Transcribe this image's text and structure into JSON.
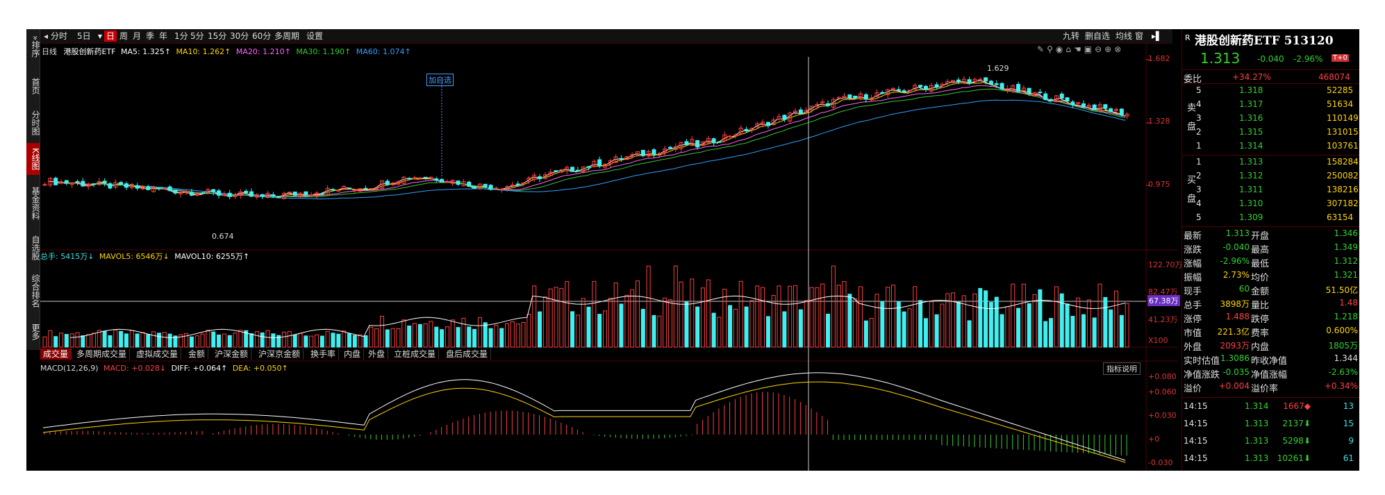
{
  "leftnav": {
    "expand": "»",
    "items": [
      "排序",
      "首页",
      "分时图",
      "K线图",
      "基金资料",
      "自选股",
      "综合排名",
      "更多"
    ]
  },
  "toolbar": {
    "periods": [
      "分时",
      "5日",
      "日",
      "周",
      "月",
      "季",
      "年",
      "1分",
      "5分",
      "15分",
      "30分",
      "60分",
      "多周期",
      "设置"
    ],
    "right_items": [
      "九转",
      "删自选",
      "均线",
      "窗"
    ]
  },
  "kline": {
    "period_label": "日线",
    "name": "港股创新药ETF",
    "ma5": "MA5: 1.325↑",
    "ma10": "MA10: 1.262↑",
    "ma20": "MA20: 1.210↑",
    "ma30": "MA30: 1.190↑",
    "ma60": "MA60: 1.074↑",
    "y_ticks": [
      "1.682",
      "1.328",
      "0.975"
    ],
    "high_label": "1.629",
    "low_label": "0.674",
    "add_fav": "加自选"
  },
  "volume": {
    "legend_total": "总手: 5415万↓",
    "legend_mavol5": "MAVOL5: 6546万↓",
    "legend_mavol10": "MAVOL10: 6255万↑",
    "y_ticks": [
      "122.70万",
      "82.47万",
      "41.23万",
      "X100"
    ],
    "cursor_label": "67.38万"
  },
  "tabs": [
    "成交量",
    "多周期成交量",
    "虚拟成交量",
    "金额",
    "沪深金额",
    "沪深京金额",
    "换手率",
    "内盘",
    "外盘",
    "立桩成交量",
    "盘后成交量"
  ],
  "macd": {
    "title": "MACD(12,26,9)",
    "macd": "MACD: +0.028↓",
    "diff": "DIFF: +0.064↑",
    "dea": "DEA: +0.050↑",
    "help": "指标说明",
    "y_ticks": [
      "+0.080",
      "+0.060",
      "+0.030",
      "+0",
      "-0.030"
    ]
  },
  "quote": {
    "badge": "R",
    "title": "港股创新药ETF 513120",
    "price": "1.313",
    "change": "-0.040",
    "change_pct": "-2.96%",
    "t0": "T+0",
    "weibi_label": "委比",
    "weibi": "+34.27%",
    "weicha": "468074",
    "sell_label": "卖盘",
    "buy_label": "买盘",
    "asks": [
      {
        "lvl": "5",
        "price": "1.318",
        "vol": "52285"
      },
      {
        "lvl": "4",
        "price": "1.317",
        "vol": "51634"
      },
      {
        "lvl": "3",
        "price": "1.316",
        "vol": "110149"
      },
      {
        "lvl": "2",
        "price": "1.315",
        "vol": "131015"
      },
      {
        "lvl": "1",
        "price": "1.314",
        "vol": "103761"
      }
    ],
    "bids": [
      {
        "lvl": "1",
        "price": "1.313",
        "vol": "158284"
      },
      {
        "lvl": "2",
        "price": "1.312",
        "vol": "250082"
      },
      {
        "lvl": "3",
        "price": "1.311",
        "vol": "138216"
      },
      {
        "lvl": "4",
        "price": "1.310",
        "vol": "307182"
      },
      {
        "lvl": "5",
        "price": "1.309",
        "vol": "63154"
      }
    ],
    "stats": [
      {
        "l1": "最新",
        "v1": "1.313",
        "c1": "green",
        "l2": "开盘",
        "v2": "1.346",
        "c2": "green"
      },
      {
        "l1": "涨跌",
        "v1": "-0.040",
        "c1": "green",
        "l2": "最高",
        "v2": "1.349",
        "c2": "green"
      },
      {
        "l1": "涨幅",
        "v1": "-2.96%",
        "c1": "green",
        "l2": "最低",
        "v2": "1.312",
        "c2": "green"
      },
      {
        "l1": "振幅",
        "v1": "2.73%",
        "c1": "yellow",
        "l2": "均价",
        "v2": "1.321",
        "c2": "green"
      },
      {
        "l1": "现手",
        "v1": "60",
        "c1": "green",
        "l2": "金额",
        "v2": "51.50亿",
        "c2": "yellow"
      },
      {
        "l1": "总手",
        "v1": "3898万",
        "c1": "yellow",
        "l2": "量比",
        "v2": "1.48",
        "c2": "red"
      },
      {
        "l1": "涨停",
        "v1": "1.488",
        "c1": "red",
        "l2": "跌停",
        "v2": "1.218",
        "c2": "green"
      },
      {
        "l1": "市值",
        "v1": "221.3亿",
        "c1": "yellow",
        "l2": "费率",
        "v2": "0.600%",
        "c2": "yellow"
      },
      {
        "l1": "外盘",
        "v1": "2093万",
        "c1": "red",
        "l2": "内盘",
        "v2": "1805万",
        "c2": "green"
      },
      {
        "l1": "实时估值",
        "v1": "1.3086",
        "c1": "green",
        "l2": "昨收净值",
        "v2": "1.344",
        "c2": "white"
      },
      {
        "l1": "净值涨跌",
        "v1": "-0.035",
        "c1": "green",
        "l2": "净值涨幅",
        "v2": "-2.63%",
        "c2": "green"
      },
      {
        "l1": "溢价",
        "v1": "+0.004",
        "c1": "red",
        "l2": "溢价率",
        "v2": "+0.34%",
        "c2": "red"
      }
    ],
    "ticks": [
      {
        "time": "14:15",
        "price": "1.314",
        "vol": "1667",
        "dir": "up",
        "num": "13"
      },
      {
        "time": "14:15",
        "price": "1.313",
        "vol": "2137",
        "dir": "down",
        "num": "15"
      },
      {
        "time": "14:15",
        "price": "1.313",
        "vol": "5298",
        "dir": "down",
        "num": "9"
      },
      {
        "time": "14:15",
        "price": "1.313",
        "vol": "10261",
        "dir": "down",
        "num": "61"
      }
    ]
  },
  "colors": {
    "up": "#ff4040",
    "down": "#40f0f0",
    "ma5": "#ffffff",
    "ma10": "#ffd700",
    "ma20": "#ff66ff",
    "ma30": "#33cc33",
    "ma60": "#33a0ff"
  }
}
